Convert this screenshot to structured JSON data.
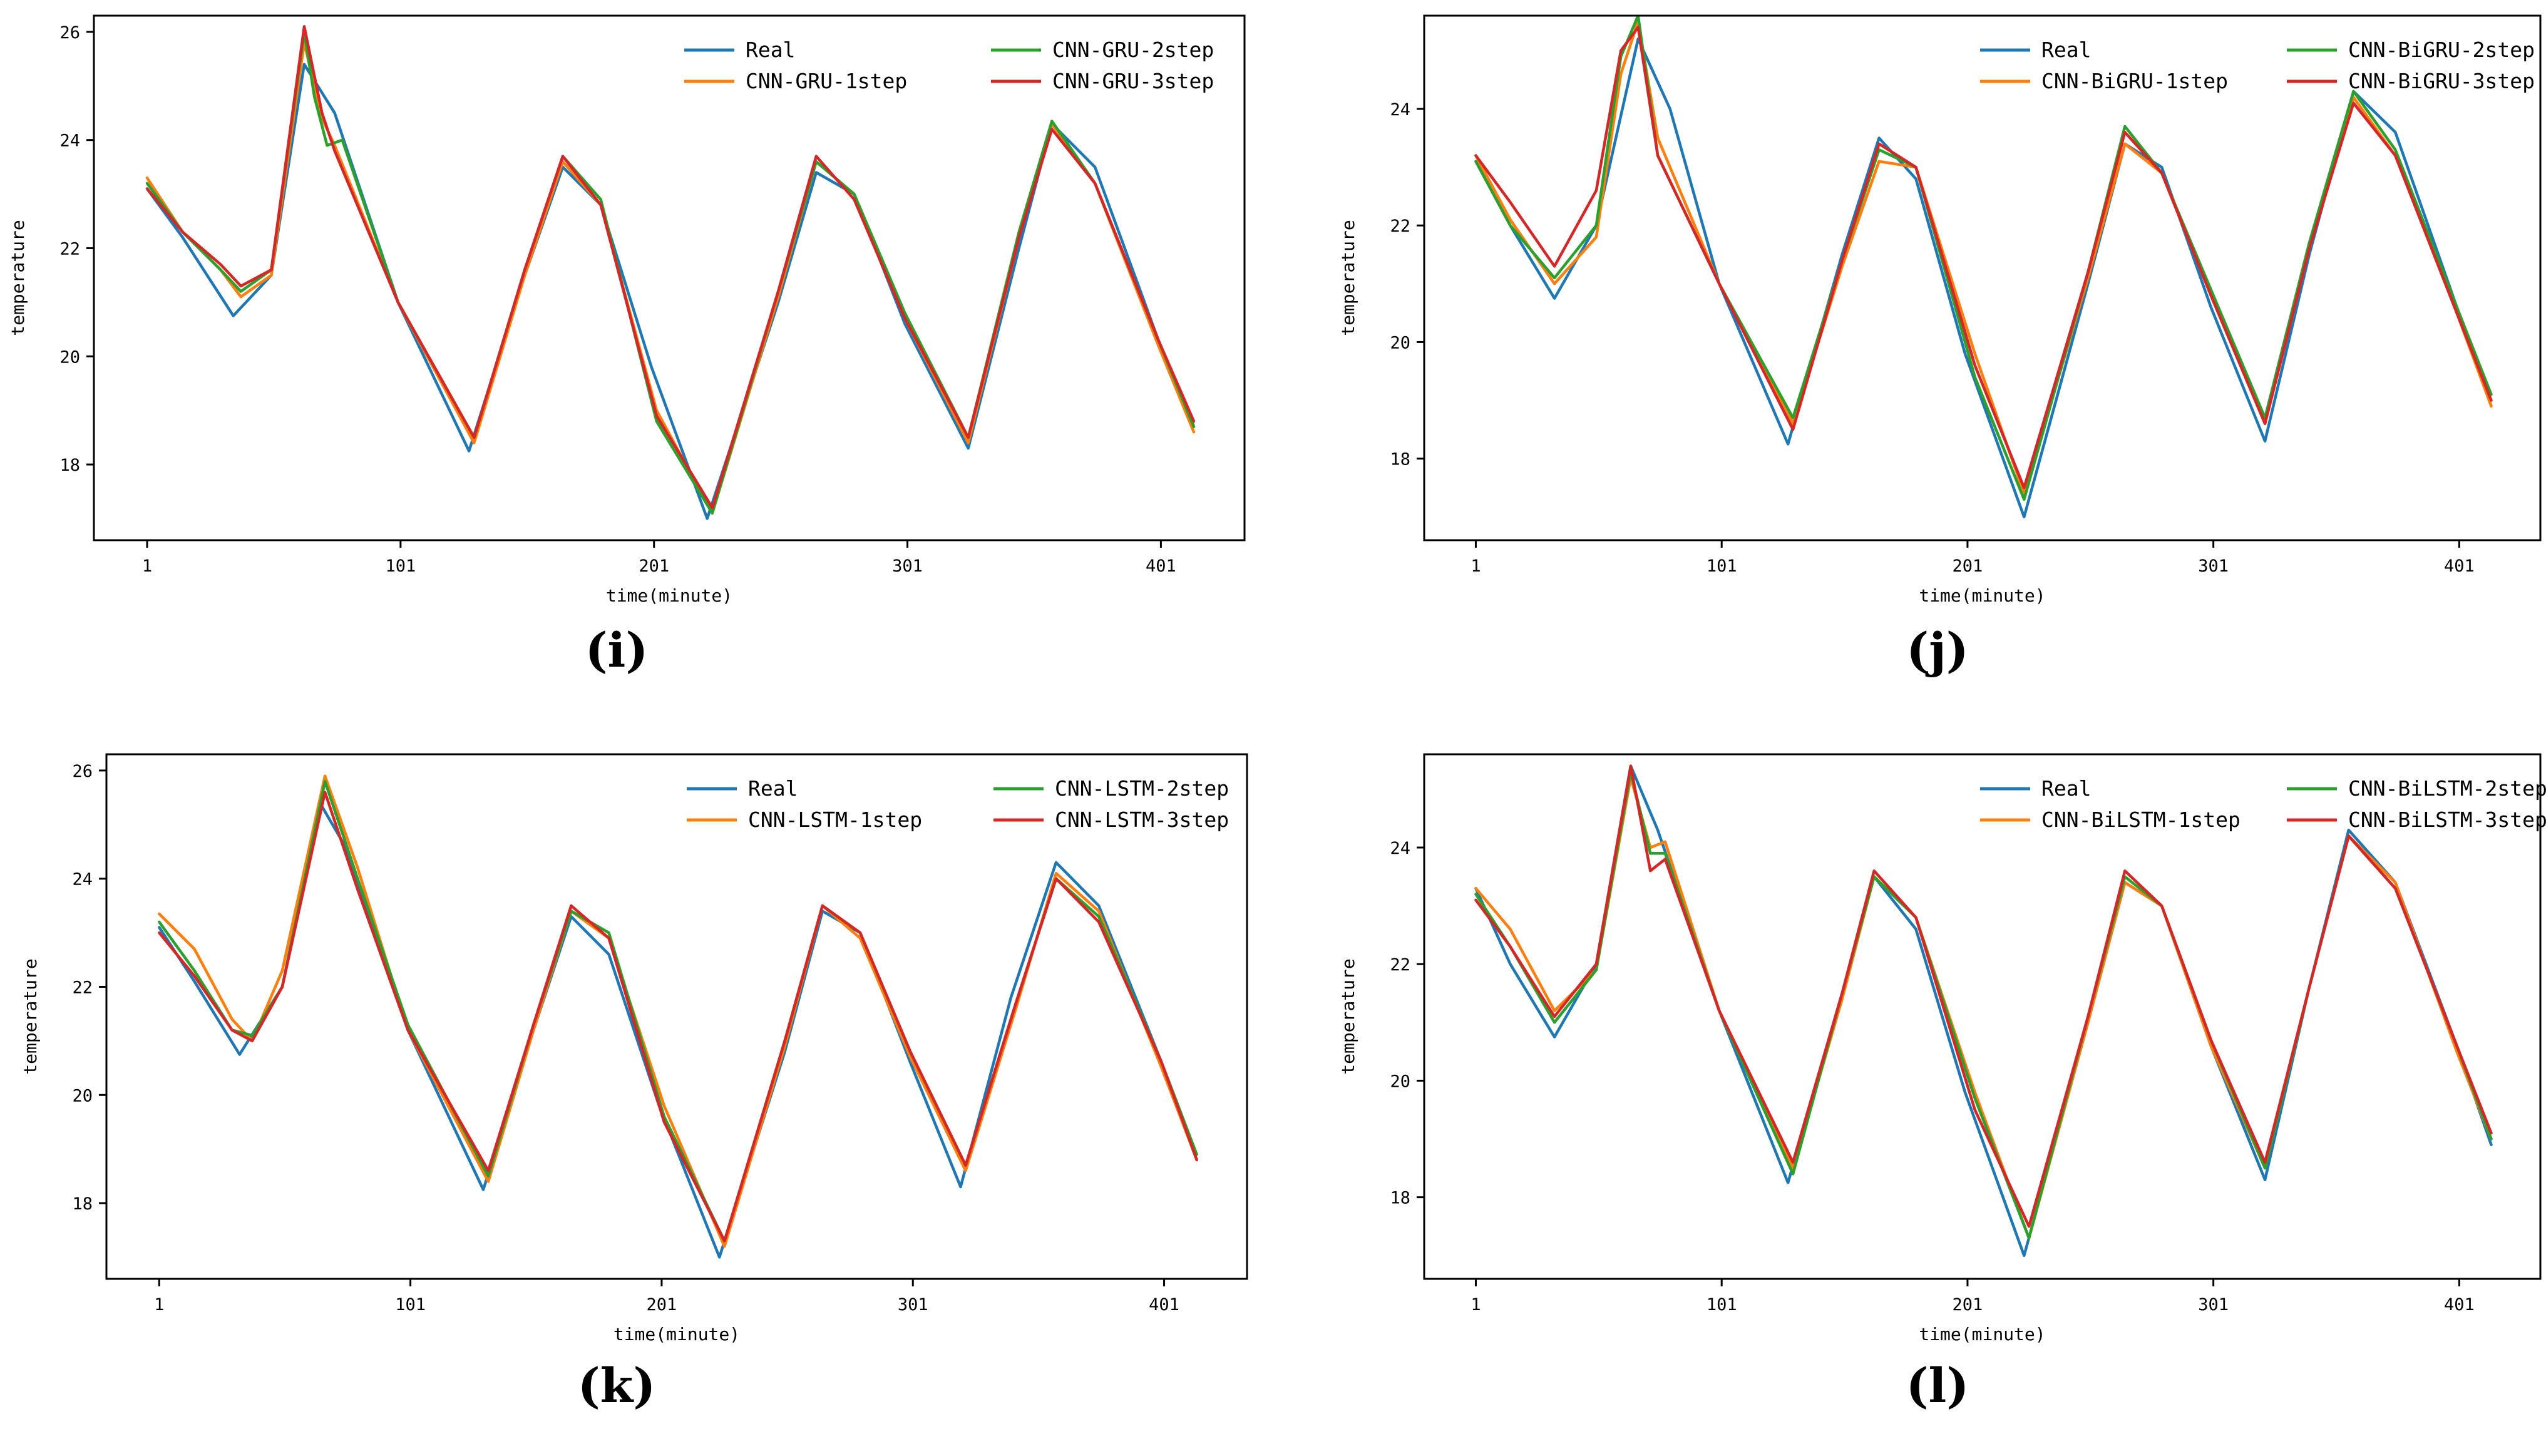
{
  "colors": {
    "Real": "#1f77b4",
    "1step": "#ff7f0e",
    "2step": "#2ca02c",
    "3step": "#d62728"
  },
  "chart_data": [
    {
      "panel": "(i)",
      "type": "line",
      "xlabel": "time(minute)",
      "ylabel": "temperature",
      "xticks": [
        1,
        101,
        201,
        301,
        401
      ],
      "yticks": [
        18,
        20,
        22,
        24,
        26
      ],
      "xlim": [
        -20,
        434
      ],
      "ylim": [
        16.6,
        26.3
      ],
      "legend_position": "top-right",
      "series": [
        {
          "name": "Real",
          "color_key": "Real",
          "x": [
            1,
            15,
            35,
            50,
            63,
            75,
            100,
            128,
            150,
            165,
            180,
            200,
            222,
            250,
            265,
            280,
            300,
            325,
            345,
            358,
            375,
            400,
            414
          ],
          "y": [
            23.1,
            22.2,
            20.75,
            21.5,
            25.4,
            24.5,
            21.0,
            18.25,
            21.5,
            23.5,
            22.8,
            19.8,
            17.0,
            21.0,
            23.4,
            23.0,
            20.6,
            18.3,
            22.0,
            24.3,
            23.5,
            20.3,
            18.7
          ]
        },
        {
          "name": "CNN-GRU-1step",
          "color_key": "1step",
          "x": [
            1,
            15,
            30,
            38,
            50,
            63,
            70,
            75,
            100,
            130,
            150,
            165,
            180,
            202,
            224,
            250,
            265,
            280,
            300,
            325,
            345,
            358,
            375,
            400,
            414
          ],
          "y": [
            23.3,
            22.3,
            21.6,
            21.1,
            21.5,
            25.8,
            24.4,
            23.9,
            21.0,
            18.4,
            21.5,
            23.6,
            22.8,
            19.0,
            17.1,
            21.1,
            23.6,
            23.0,
            20.7,
            18.4,
            22.2,
            24.3,
            23.2,
            20.2,
            18.6
          ]
        },
        {
          "name": "CNN-GRU-2step",
          "color_key": "2step",
          "x": [
            1,
            15,
            30,
            38,
            50,
            63,
            67,
            72,
            78,
            100,
            130,
            150,
            165,
            180,
            202,
            224,
            250,
            265,
            280,
            300,
            325,
            345,
            358,
            375,
            400,
            414
          ],
          "y": [
            23.2,
            22.3,
            21.6,
            21.2,
            21.6,
            26.0,
            24.8,
            23.9,
            24.0,
            21.0,
            18.5,
            21.6,
            23.7,
            22.9,
            18.8,
            17.1,
            21.2,
            23.6,
            23.0,
            20.8,
            18.5,
            22.3,
            24.35,
            23.2,
            20.3,
            18.7
          ]
        },
        {
          "name": "CNN-GRU-3step",
          "color_key": "3step",
          "x": [
            1,
            15,
            30,
            38,
            50,
            63,
            70,
            75,
            100,
            130,
            150,
            165,
            180,
            202,
            224,
            250,
            265,
            280,
            300,
            325,
            345,
            358,
            375,
            400,
            414
          ],
          "y": [
            23.1,
            22.3,
            21.7,
            21.3,
            21.6,
            26.1,
            24.5,
            23.8,
            21.0,
            18.5,
            21.6,
            23.7,
            22.8,
            18.9,
            17.2,
            21.2,
            23.7,
            22.9,
            20.7,
            18.5,
            22.2,
            24.2,
            23.2,
            20.3,
            18.8
          ]
        }
      ]
    },
    {
      "panel": "(j)",
      "type": "line",
      "xlabel": "time(minute)",
      "ylabel": "temperature",
      "xticks": [
        1,
        101,
        201,
        301,
        401
      ],
      "yticks": [
        18,
        20,
        22,
        24
      ],
      "xlim": [
        -20,
        434
      ],
      "ylim": [
        16.6,
        25.6
      ],
      "legend_position": "top-right",
      "series": [
        {
          "name": "Real",
          "color_key": "Real",
          "x": [
            1,
            15,
            33,
            50,
            67,
            80,
            100,
            128,
            150,
            165,
            180,
            200,
            224,
            250,
            265,
            280,
            300,
            322,
            340,
            358,
            375,
            400,
            414
          ],
          "y": [
            23.1,
            22.0,
            20.75,
            22.0,
            25.2,
            24.0,
            21.0,
            18.25,
            21.5,
            23.5,
            22.8,
            19.8,
            17.0,
            21.0,
            23.4,
            23.0,
            20.6,
            18.3,
            21.5,
            24.3,
            23.6,
            20.6,
            18.9
          ]
        },
        {
          "name": "CNN-BiGRU-1step",
          "color_key": "1step",
          "x": [
            1,
            15,
            33,
            50,
            60,
            67,
            75,
            100,
            130,
            150,
            165,
            180,
            204,
            224,
            250,
            265,
            280,
            300,
            322,
            340,
            358,
            375,
            400,
            414
          ],
          "y": [
            23.2,
            22.1,
            21.0,
            21.8,
            24.6,
            25.5,
            23.5,
            21.0,
            18.6,
            21.3,
            23.1,
            23.0,
            19.8,
            17.4,
            21.1,
            23.4,
            22.9,
            20.8,
            18.6,
            21.6,
            24.2,
            23.2,
            20.5,
            18.9
          ]
        },
        {
          "name": "CNN-BiGRU-2step",
          "color_key": "2step",
          "x": [
            1,
            15,
            33,
            50,
            60,
            67,
            75,
            100,
            130,
            150,
            165,
            180,
            204,
            224,
            250,
            265,
            280,
            300,
            322,
            340,
            358,
            375,
            400,
            414
          ],
          "y": [
            23.1,
            22.0,
            21.1,
            22.0,
            24.9,
            25.6,
            23.2,
            21.0,
            18.7,
            21.4,
            23.3,
            23.0,
            19.4,
            17.3,
            21.2,
            23.7,
            22.9,
            20.9,
            18.7,
            21.7,
            24.3,
            23.3,
            20.6,
            19.1
          ]
        },
        {
          "name": "CNN-BiGRU-3step",
          "color_key": "3step",
          "x": [
            1,
            15,
            33,
            50,
            60,
            67,
            75,
            100,
            130,
            150,
            165,
            180,
            204,
            224,
            250,
            265,
            280,
            300,
            322,
            340,
            358,
            375,
            400,
            414
          ],
          "y": [
            23.2,
            22.4,
            21.3,
            22.6,
            25.0,
            25.4,
            23.2,
            21.0,
            18.5,
            21.4,
            23.4,
            23.0,
            19.6,
            17.5,
            21.2,
            23.6,
            22.9,
            20.8,
            18.6,
            21.6,
            24.1,
            23.2,
            20.5,
            19.0
          ]
        }
      ]
    },
    {
      "panel": "(k)",
      "type": "line",
      "xlabel": "time(minute)",
      "ylabel": "temperature",
      "xticks": [
        1,
        101,
        201,
        301,
        401
      ],
      "yticks": [
        18,
        20,
        22,
        24,
        26
      ],
      "xlim": [
        -20,
        434
      ],
      "ylim": [
        16.6,
        26.3
      ],
      "legend_position": "top-right",
      "series": [
        {
          "name": "Real",
          "color_key": "Real",
          "x": [
            1,
            15,
            33,
            50,
            65,
            75,
            100,
            130,
            150,
            165,
            180,
            200,
            224,
            250,
            265,
            280,
            300,
            320,
            340,
            358,
            375,
            400,
            414
          ],
          "y": [
            23.1,
            22.1,
            20.75,
            22.0,
            25.4,
            24.6,
            21.2,
            18.25,
            21.2,
            23.3,
            22.6,
            19.8,
            17.0,
            20.8,
            23.4,
            23.0,
            20.6,
            18.3,
            21.8,
            24.3,
            23.5,
            20.6,
            18.8
          ]
        },
        {
          "name": "CNN-LSTM-1step",
          "color_key": "1step",
          "x": [
            1,
            15,
            30,
            38,
            50,
            67,
            80,
            100,
            132,
            150,
            165,
            180,
            202,
            226,
            250,
            265,
            280,
            300,
            322,
            342,
            358,
            375,
            400,
            414
          ],
          "y": [
            23.35,
            22.7,
            21.4,
            21.0,
            22.3,
            25.9,
            24.2,
            21.2,
            18.4,
            21.2,
            23.4,
            22.9,
            19.8,
            17.2,
            20.9,
            23.5,
            22.9,
            20.7,
            18.6,
            21.6,
            24.1,
            23.4,
            20.5,
            18.8
          ]
        },
        {
          "name": "CNN-LSTM-2step",
          "color_key": "2step",
          "x": [
            1,
            15,
            30,
            38,
            50,
            67,
            80,
            100,
            132,
            150,
            165,
            180,
            202,
            226,
            250,
            265,
            280,
            300,
            322,
            342,
            358,
            375,
            400,
            414
          ],
          "y": [
            23.2,
            22.3,
            21.2,
            21.1,
            22.0,
            25.8,
            24.0,
            21.3,
            18.5,
            21.3,
            23.4,
            23.0,
            19.6,
            17.3,
            21.0,
            23.5,
            23.0,
            20.8,
            18.7,
            21.7,
            24.0,
            23.3,
            20.6,
            18.9
          ]
        },
        {
          "name": "CNN-LSTM-3step",
          "color_key": "3step",
          "x": [
            1,
            15,
            30,
            38,
            50,
            67,
            80,
            100,
            132,
            150,
            165,
            180,
            202,
            226,
            250,
            265,
            280,
            300,
            322,
            342,
            358,
            375,
            400,
            414
          ],
          "y": [
            23.0,
            22.2,
            21.2,
            21.0,
            22.0,
            25.6,
            23.8,
            21.2,
            18.6,
            21.3,
            23.5,
            22.9,
            19.5,
            17.3,
            21.0,
            23.5,
            23.0,
            20.8,
            18.7,
            21.7,
            24.0,
            23.2,
            20.6,
            18.8
          ]
        }
      ]
    },
    {
      "panel": "(l)",
      "type": "line",
      "xlabel": "time(minute)",
      "ylabel": "temperature",
      "xticks": [
        1,
        101,
        201,
        301,
        401
      ],
      "yticks": [
        18,
        20,
        22,
        24
      ],
      "xlim": [
        -20,
        434
      ],
      "ylim": [
        16.6,
        25.6
      ],
      "legend_position": "top-right",
      "series": [
        {
          "name": "Real",
          "color_key": "Real",
          "x": [
            1,
            15,
            33,
            50,
            64,
            75,
            100,
            128,
            150,
            163,
            180,
            200,
            224,
            250,
            265,
            280,
            300,
            322,
            340,
            356,
            375,
            400,
            414
          ],
          "y": [
            23.3,
            22.0,
            20.75,
            22.0,
            25.4,
            24.3,
            21.2,
            18.25,
            21.5,
            23.5,
            22.6,
            19.8,
            17.0,
            21.0,
            23.4,
            23.0,
            20.6,
            18.3,
            21.6,
            24.3,
            23.4,
            20.6,
            18.9
          ]
        },
        {
          "name": "CNN-BiLSTM-1step",
          "color_key": "1step",
          "x": [
            1,
            15,
            33,
            50,
            64,
            72,
            78,
            100,
            130,
            150,
            163,
            180,
            204,
            226,
            250,
            265,
            280,
            300,
            322,
            340,
            356,
            375,
            400,
            414
          ],
          "y": [
            23.3,
            22.6,
            21.2,
            21.9,
            25.2,
            24.0,
            24.1,
            21.2,
            18.5,
            21.4,
            23.5,
            22.8,
            19.8,
            17.3,
            21.0,
            23.4,
            23.0,
            20.6,
            18.5,
            21.6,
            24.2,
            23.4,
            20.5,
            19.0
          ]
        },
        {
          "name": "CNN-BiLSTM-2step",
          "color_key": "2step",
          "x": [
            1,
            15,
            33,
            50,
            64,
            72,
            78,
            100,
            130,
            150,
            163,
            180,
            204,
            226,
            250,
            265,
            280,
            300,
            322,
            340,
            356,
            375,
            400,
            414
          ],
          "y": [
            23.2,
            22.3,
            21.0,
            21.9,
            25.3,
            23.9,
            23.9,
            21.2,
            18.4,
            21.5,
            23.5,
            22.8,
            19.7,
            17.3,
            21.1,
            23.5,
            23.0,
            20.7,
            18.5,
            21.6,
            24.2,
            23.3,
            20.6,
            19.0
          ]
        },
        {
          "name": "CNN-BiLSTM-3step",
          "color_key": "3step",
          "x": [
            1,
            15,
            33,
            50,
            64,
            72,
            78,
            100,
            130,
            150,
            163,
            180,
            204,
            226,
            250,
            265,
            280,
            300,
            322,
            340,
            356,
            375,
            400,
            414
          ],
          "y": [
            23.1,
            22.3,
            21.1,
            22.0,
            25.4,
            23.6,
            23.8,
            21.2,
            18.6,
            21.5,
            23.6,
            22.8,
            19.5,
            17.5,
            21.1,
            23.6,
            23.0,
            20.7,
            18.6,
            21.6,
            24.2,
            23.3,
            20.6,
            19.1
          ]
        }
      ]
    }
  ]
}
